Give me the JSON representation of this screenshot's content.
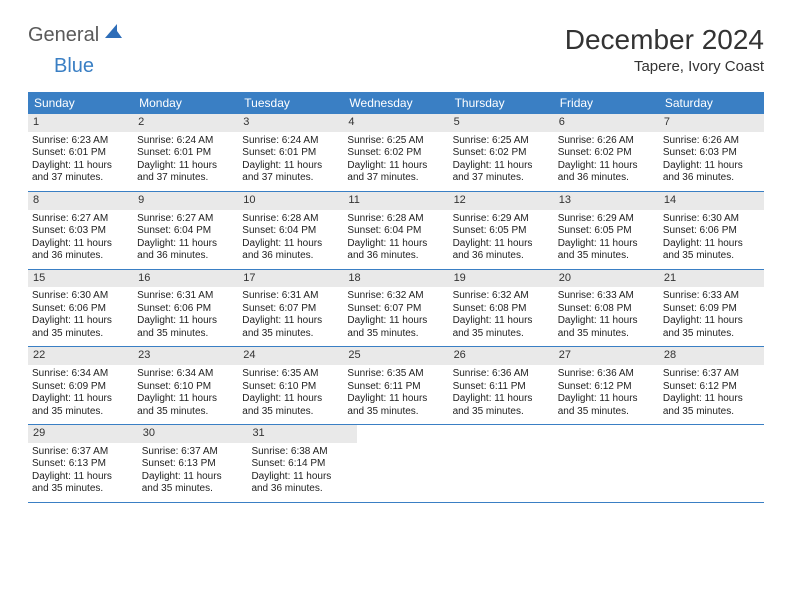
{
  "logo": {
    "text_general": "General",
    "text_blue": "Blue"
  },
  "header": {
    "month": "December 2024",
    "location": "Tapere, Ivory Coast"
  },
  "colors": {
    "header_bg": "#3a7fc4",
    "header_text": "#ffffff",
    "date_bg": "#e9e9e9",
    "week_border": "#3a7fc4",
    "body_text": "#222222"
  },
  "day_names": [
    "Sunday",
    "Monday",
    "Tuesday",
    "Wednesday",
    "Thursday",
    "Friday",
    "Saturday"
  ],
  "weeks": [
    [
      {
        "date": "1",
        "sunrise": "6:23 AM",
        "sunset": "6:01 PM",
        "daylight_h": "11",
        "daylight_m": "37"
      },
      {
        "date": "2",
        "sunrise": "6:24 AM",
        "sunset": "6:01 PM",
        "daylight_h": "11",
        "daylight_m": "37"
      },
      {
        "date": "3",
        "sunrise": "6:24 AM",
        "sunset": "6:01 PM",
        "daylight_h": "11",
        "daylight_m": "37"
      },
      {
        "date": "4",
        "sunrise": "6:25 AM",
        "sunset": "6:02 PM",
        "daylight_h": "11",
        "daylight_m": "37"
      },
      {
        "date": "5",
        "sunrise": "6:25 AM",
        "sunset": "6:02 PM",
        "daylight_h": "11",
        "daylight_m": "37"
      },
      {
        "date": "6",
        "sunrise": "6:26 AM",
        "sunset": "6:02 PM",
        "daylight_h": "11",
        "daylight_m": "36"
      },
      {
        "date": "7",
        "sunrise": "6:26 AM",
        "sunset": "6:03 PM",
        "daylight_h": "11",
        "daylight_m": "36"
      }
    ],
    [
      {
        "date": "8",
        "sunrise": "6:27 AM",
        "sunset": "6:03 PM",
        "daylight_h": "11",
        "daylight_m": "36"
      },
      {
        "date": "9",
        "sunrise": "6:27 AM",
        "sunset": "6:04 PM",
        "daylight_h": "11",
        "daylight_m": "36"
      },
      {
        "date": "10",
        "sunrise": "6:28 AM",
        "sunset": "6:04 PM",
        "daylight_h": "11",
        "daylight_m": "36"
      },
      {
        "date": "11",
        "sunrise": "6:28 AM",
        "sunset": "6:04 PM",
        "daylight_h": "11",
        "daylight_m": "36"
      },
      {
        "date": "12",
        "sunrise": "6:29 AM",
        "sunset": "6:05 PM",
        "daylight_h": "11",
        "daylight_m": "36"
      },
      {
        "date": "13",
        "sunrise": "6:29 AM",
        "sunset": "6:05 PM",
        "daylight_h": "11",
        "daylight_m": "35"
      },
      {
        "date": "14",
        "sunrise": "6:30 AM",
        "sunset": "6:06 PM",
        "daylight_h": "11",
        "daylight_m": "35"
      }
    ],
    [
      {
        "date": "15",
        "sunrise": "6:30 AM",
        "sunset": "6:06 PM",
        "daylight_h": "11",
        "daylight_m": "35"
      },
      {
        "date": "16",
        "sunrise": "6:31 AM",
        "sunset": "6:06 PM",
        "daylight_h": "11",
        "daylight_m": "35"
      },
      {
        "date": "17",
        "sunrise": "6:31 AM",
        "sunset": "6:07 PM",
        "daylight_h": "11",
        "daylight_m": "35"
      },
      {
        "date": "18",
        "sunrise": "6:32 AM",
        "sunset": "6:07 PM",
        "daylight_h": "11",
        "daylight_m": "35"
      },
      {
        "date": "19",
        "sunrise": "6:32 AM",
        "sunset": "6:08 PM",
        "daylight_h": "11",
        "daylight_m": "35"
      },
      {
        "date": "20",
        "sunrise": "6:33 AM",
        "sunset": "6:08 PM",
        "daylight_h": "11",
        "daylight_m": "35"
      },
      {
        "date": "21",
        "sunrise": "6:33 AM",
        "sunset": "6:09 PM",
        "daylight_h": "11",
        "daylight_m": "35"
      }
    ],
    [
      {
        "date": "22",
        "sunrise": "6:34 AM",
        "sunset": "6:09 PM",
        "daylight_h": "11",
        "daylight_m": "35"
      },
      {
        "date": "23",
        "sunrise": "6:34 AM",
        "sunset": "6:10 PM",
        "daylight_h": "11",
        "daylight_m": "35"
      },
      {
        "date": "24",
        "sunrise": "6:35 AM",
        "sunset": "6:10 PM",
        "daylight_h": "11",
        "daylight_m": "35"
      },
      {
        "date": "25",
        "sunrise": "6:35 AM",
        "sunset": "6:11 PM",
        "daylight_h": "11",
        "daylight_m": "35"
      },
      {
        "date": "26",
        "sunrise": "6:36 AM",
        "sunset": "6:11 PM",
        "daylight_h": "11",
        "daylight_m": "35"
      },
      {
        "date": "27",
        "sunrise": "6:36 AM",
        "sunset": "6:12 PM",
        "daylight_h": "11",
        "daylight_m": "35"
      },
      {
        "date": "28",
        "sunrise": "6:37 AM",
        "sunset": "6:12 PM",
        "daylight_h": "11",
        "daylight_m": "35"
      }
    ],
    [
      {
        "date": "29",
        "sunrise": "6:37 AM",
        "sunset": "6:13 PM",
        "daylight_h": "11",
        "daylight_m": "35"
      },
      {
        "date": "30",
        "sunrise": "6:37 AM",
        "sunset": "6:13 PM",
        "daylight_h": "11",
        "daylight_m": "35"
      },
      {
        "date": "31",
        "sunrise": "6:38 AM",
        "sunset": "6:14 PM",
        "daylight_h": "11",
        "daylight_m": "36"
      },
      null,
      null,
      null,
      null
    ]
  ],
  "labels": {
    "sunrise_prefix": "Sunrise: ",
    "sunset_prefix": "Sunset: ",
    "daylight_prefix": "Daylight: ",
    "hours_word": " hours",
    "and_word": "and ",
    "minutes_word": " minutes."
  }
}
